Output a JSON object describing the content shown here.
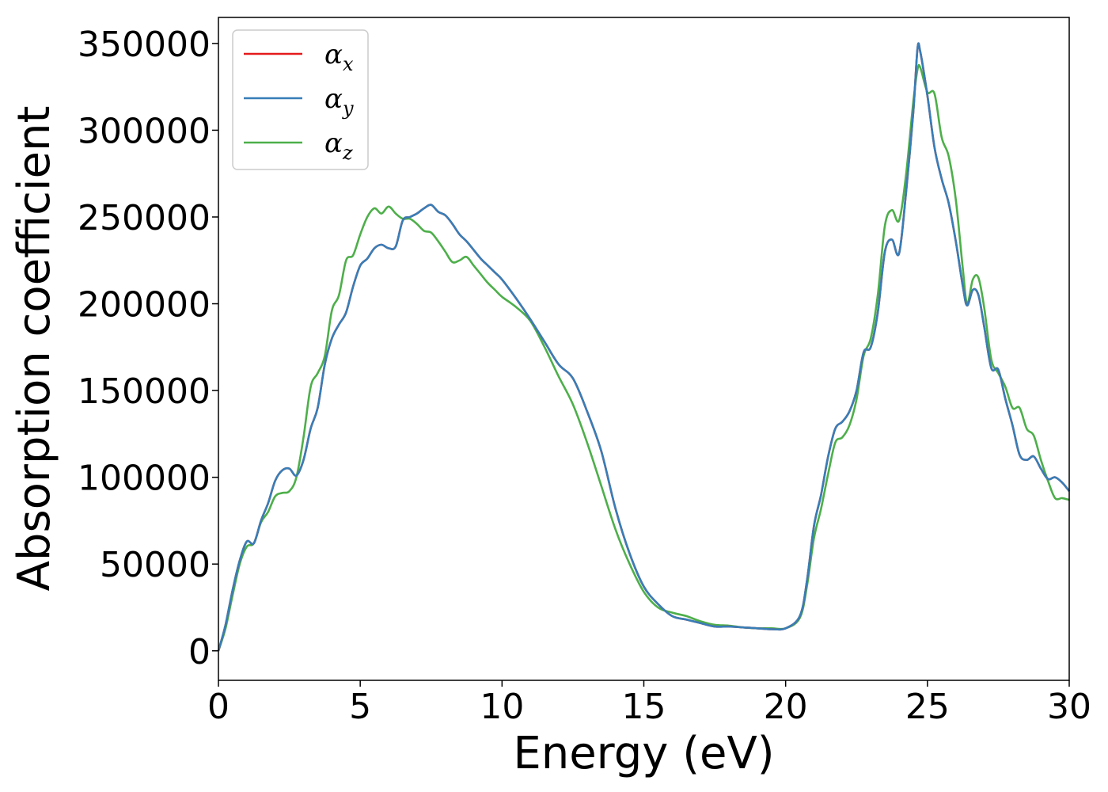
{
  "chart_data": {
    "type": "line",
    "title": "",
    "xlabel": "Energy (eV)",
    "ylabel": "Absorption coefficient",
    "xlim": [
      0,
      30
    ],
    "ylim": [
      -17000,
      365000
    ],
    "x_ticks": [
      0,
      5,
      10,
      15,
      20,
      25,
      30
    ],
    "y_ticks": [
      0,
      50000,
      100000,
      150000,
      200000,
      250000,
      300000,
      350000
    ],
    "grid": false,
    "legend_position": "top-left",
    "x": [
      0,
      0.25,
      0.5,
      0.75,
      1.0,
      1.25,
      1.5,
      1.75,
      2.0,
      2.25,
      2.5,
      2.75,
      3.0,
      3.25,
      3.5,
      3.75,
      4.0,
      4.25,
      4.5,
      4.75,
      5.0,
      5.25,
      5.5,
      5.75,
      6.0,
      6.25,
      6.5,
      6.75,
      7.0,
      7.25,
      7.5,
      7.75,
      8.0,
      8.25,
      8.5,
      8.75,
      9.0,
      9.25,
      9.5,
      9.75,
      10.0,
      10.5,
      11.0,
      11.5,
      12.0,
      12.5,
      13.0,
      13.5,
      14.0,
      14.5,
      15.0,
      15.5,
      16.0,
      16.5,
      17.0,
      17.5,
      18.0,
      18.5,
      19.0,
      19.5,
      20.0,
      20.5,
      20.75,
      21.0,
      21.25,
      21.5,
      21.75,
      22.0,
      22.25,
      22.5,
      22.75,
      23.0,
      23.25,
      23.5,
      23.75,
      24.0,
      24.25,
      24.5,
      24.65,
      24.75,
      25.0,
      25.25,
      25.5,
      25.75,
      26.0,
      26.25,
      26.4,
      26.6,
      26.8,
      27.0,
      27.25,
      27.5,
      27.75,
      28.0,
      28.25,
      28.5,
      28.75,
      29.0,
      29.25,
      29.5,
      29.75,
      30.0
    ],
    "series": [
      {
        "name": "α_x",
        "color": "#e41a1c",
        "values": [
          0,
          15000,
          35000,
          52000,
          63000,
          62000,
          75000,
          85000,
          98000,
          104000,
          105000,
          101000,
          110000,
          128000,
          140000,
          165000,
          180000,
          188000,
          195000,
          210000,
          222000,
          226000,
          232000,
          234000,
          232000,
          233000,
          248000,
          250000,
          252000,
          255000,
          257000,
          253000,
          251000,
          246000,
          240000,
          236000,
          231000,
          226000,
          222000,
          218000,
          214000,
          203000,
          191000,
          178000,
          165000,
          157000,
          138000,
          115000,
          82000,
          56000,
          37000,
          27000,
          20000,
          18000,
          16000,
          14000,
          14000,
          13500,
          13000,
          12500,
          13000,
          20000,
          40000,
          72000,
          90000,
          112000,
          128000,
          132000,
          138000,
          150000,
          172000,
          175000,
          195000,
          230000,
          237000,
          229000,
          265000,
          310000,
          347000,
          345000,
          320000,
          290000,
          272000,
          258000,
          236000,
          210000,
          199000,
          208000,
          205000,
          187000,
          163000,
          162000,
          145000,
          130000,
          113000,
          110000,
          112000,
          105000,
          99000,
          100000,
          97000,
          92000
        ]
      },
      {
        "name": "α_y",
        "color": "#377eb8",
        "values": [
          0,
          15000,
          35000,
          52000,
          63000,
          62000,
          75000,
          85000,
          98000,
          104000,
          105000,
          101000,
          110000,
          128000,
          140000,
          165000,
          180000,
          188000,
          195000,
          210000,
          222000,
          226000,
          232000,
          234000,
          232000,
          233000,
          248000,
          250000,
          252000,
          255000,
          257000,
          253000,
          251000,
          246000,
          240000,
          236000,
          231000,
          226000,
          222000,
          218000,
          214000,
          203000,
          191000,
          178000,
          165000,
          157000,
          138000,
          115000,
          82000,
          56000,
          37000,
          27000,
          20000,
          18000,
          16000,
          14000,
          14000,
          13500,
          13000,
          12500,
          13000,
          20000,
          40000,
          72000,
          90000,
          112000,
          128000,
          132000,
          138000,
          150000,
          172000,
          175000,
          195000,
          230000,
          237000,
          229000,
          265000,
          310000,
          347000,
          345000,
          320000,
          290000,
          272000,
          258000,
          236000,
          210000,
          199000,
          208000,
          205000,
          187000,
          163000,
          162000,
          145000,
          130000,
          113000,
          110000,
          112000,
          105000,
          99000,
          100000,
          97000,
          92000
        ]
      },
      {
        "name": "α_z",
        "color": "#4daf4a",
        "values": [
          0,
          13000,
          32000,
          50000,
          60000,
          62000,
          74000,
          80000,
          89000,
          91000,
          92000,
          100000,
          123000,
          152000,
          160000,
          170000,
          196000,
          205000,
          225000,
          228000,
          240000,
          250000,
          255000,
          252000,
          256000,
          252000,
          249000,
          249000,
          246000,
          242000,
          241000,
          236000,
          230000,
          224000,
          225000,
          227000,
          222000,
          217000,
          212000,
          208000,
          204000,
          198000,
          190000,
          175000,
          158000,
          142000,
          120000,
          95000,
          70000,
          50000,
          34000,
          25000,
          22000,
          20000,
          17000,
          15000,
          14500,
          13500,
          13000,
          13000,
          13000,
          19000,
          37000,
          65000,
          82000,
          102000,
          120000,
          123000,
          130000,
          145000,
          170000,
          180000,
          205000,
          245000,
          254000,
          248000,
          275000,
          316000,
          335000,
          336000,
          322000,
          321000,
          296000,
          285000,
          260000,
          220000,
          200000,
          214000,
          215000,
          198000,
          168000,
          160000,
          152000,
          140000,
          140000,
          128000,
          124000,
          110000,
          98000,
          88000,
          88000,
          87000
        ]
      }
    ]
  }
}
